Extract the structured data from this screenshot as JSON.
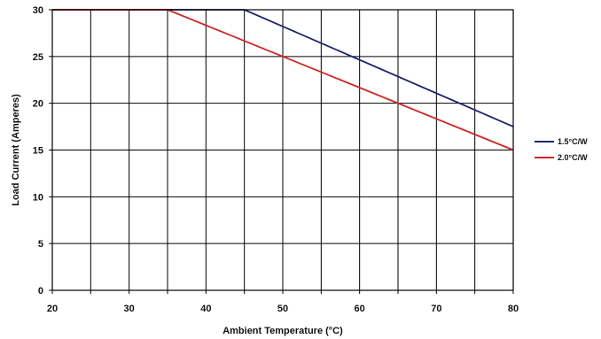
{
  "chart_data": {
    "type": "line",
    "xlabel": "Ambient Temperature (°C)",
    "ylabel": "Load Current (Amperes)",
    "xlim": [
      20,
      80
    ],
    "ylim": [
      0,
      30
    ],
    "x_ticks": [
      20,
      30,
      40,
      50,
      60,
      70,
      80
    ],
    "y_ticks": [
      0,
      5,
      10,
      15,
      20,
      25,
      30
    ],
    "x_grid_step": 5,
    "y_grid_step": 5,
    "grid": true,
    "legend_position": "right",
    "series": [
      {
        "name": "1.5°C/W",
        "color": "#1f2370",
        "points": [
          [
            20,
            30
          ],
          [
            45,
            30
          ],
          [
            80,
            17.5
          ]
        ]
      },
      {
        "name": "2.0°C/W",
        "color": "#d42323",
        "points": [
          [
            20,
            30
          ],
          [
            35,
            30
          ],
          [
            80,
            15
          ]
        ]
      }
    ]
  }
}
